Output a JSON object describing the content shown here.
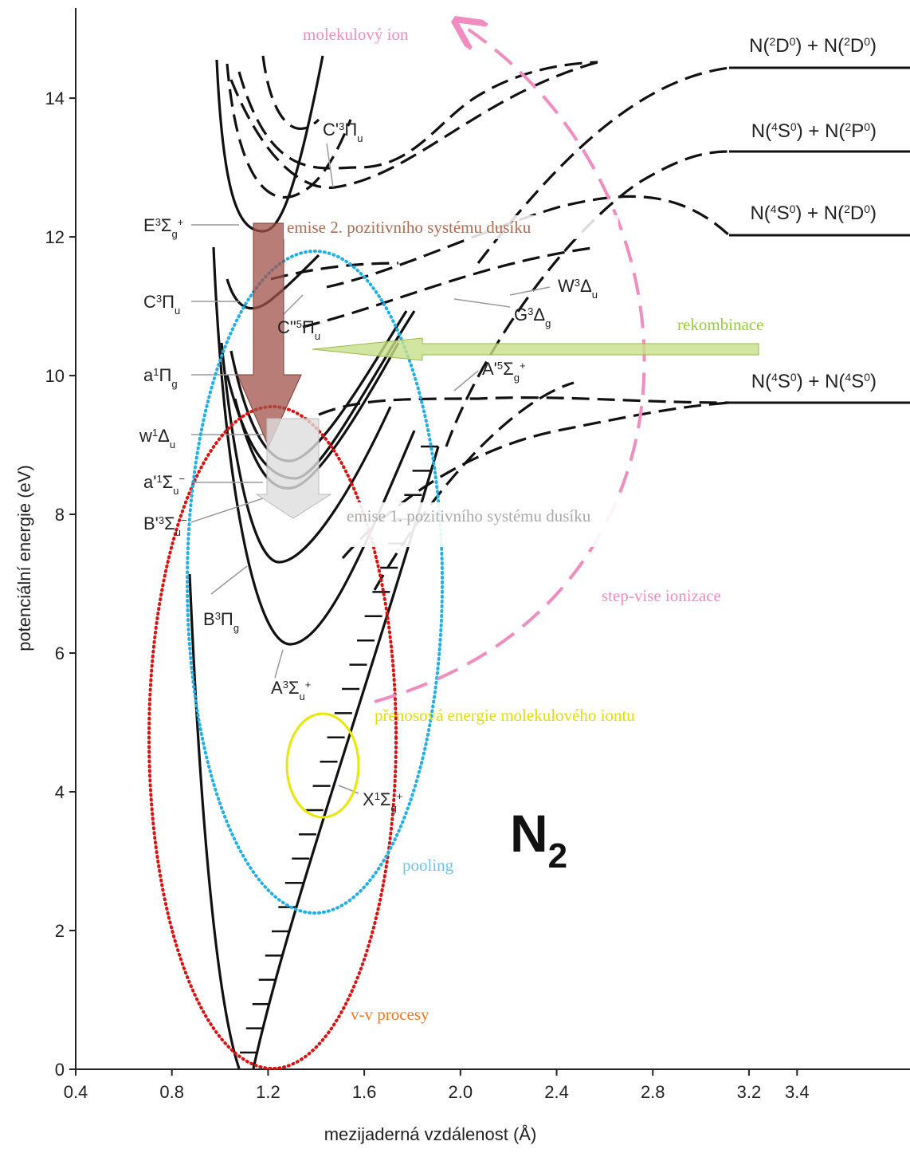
{
  "axes": {
    "x_title": "mezijaderná vzdálenost (Å)",
    "y_title": "potenciální energie (eV)",
    "xlim": [
      0.4,
      3.8
    ],
    "ylim": [
      0,
      15.3
    ],
    "xticks": [
      0.4,
      0.8,
      1.2,
      1.6,
      {
        "value": 2,
        "label": "2.0"
      },
      2.4,
      2.8,
      3.2,
      3.4
    ],
    "yticks": [
      0,
      2,
      4,
      6,
      8,
      10,
      12,
      14
    ]
  },
  "states": [
    [
      "E",
      "3",
      "Σ",
      "g",
      "+"
    ],
    [
      "C'",
      "3",
      "Π",
      "u"
    ],
    [
      "C",
      "3",
      "Π",
      "u"
    ],
    [
      "C\"",
      "5",
      "Π",
      "u"
    ],
    [
      "a",
      "1",
      "Π",
      "g"
    ],
    [
      "w",
      "1",
      "Δ",
      "u"
    ],
    [
      "a'",
      "1",
      "Σ",
      "u",
      "−"
    ],
    [
      "B'",
      "3",
      "Σ",
      "u",
      "−"
    ],
    [
      "B",
      "3",
      "Π",
      "g"
    ],
    [
      "A",
      "3",
      "Σ",
      "u",
      "+"
    ],
    [
      "X",
      "1",
      "Σ",
      "g",
      "+"
    ],
    [
      "W",
      "3",
      "Δ",
      "u"
    ],
    [
      "G",
      "3",
      "Δ",
      "g"
    ],
    [
      "A'",
      "5",
      "Σ",
      "g",
      "+"
    ]
  ],
  "limits": [
    [
      "N(",
      "2",
      "D",
      "0",
      ") + N(",
      "2",
      "D",
      "0",
      ")"
    ],
    [
      "N(",
      "4",
      "S",
      "0",
      ") + N(",
      "2",
      "P",
      "0",
      ")"
    ],
    [
      "N(",
      "4",
      "S",
      "0",
      ") + N(",
      "2",
      "D",
      "0",
      ")"
    ],
    [
      "N(",
      "4",
      "S",
      "0",
      ") + N(",
      "4",
      "S",
      "0",
      ")"
    ]
  ],
  "annotations": {
    "ion": "molekulový ion",
    "emission2": "emise 2. pozitivního systému dusíku",
    "recombination": "rekombinace",
    "emission1": "emise 1. pozitivního systému dusíku",
    "stepwise": "step-vise ionizace",
    "transfer": "přenosová energie molekulového iontu",
    "pooling": "pooling",
    "vv": "v-v procesy"
  },
  "molecule": [
    "N",
    "2"
  ]
}
